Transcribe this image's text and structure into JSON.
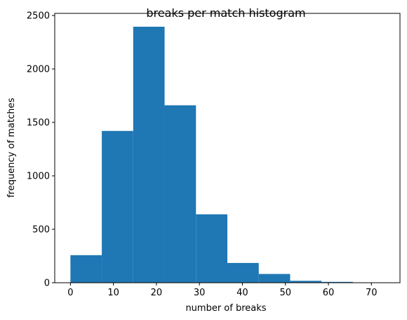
{
  "chart_data": {
    "type": "bar",
    "title": "breaks per match histogram",
    "xlabel": "number of breaks",
    "ylabel": "frequency of matches",
    "xlim": [
      -3.65,
      76.65
    ],
    "ylim": [
      0,
      2520
    ],
    "xticks": [
      0,
      10,
      20,
      30,
      40,
      50,
      60,
      70
    ],
    "yticks": [
      0,
      500,
      1000,
      1500,
      2000,
      2500
    ],
    "bin_edges": [
      0,
      7.3,
      14.6,
      21.9,
      29.2,
      36.5,
      43.8,
      51.1,
      58.4,
      65.7,
      73
    ],
    "values": [
      258,
      1420,
      2395,
      1660,
      640,
      185,
      82,
      18,
      8,
      2
    ],
    "bar_color": "#1f77b4",
    "grid": false,
    "legend": "none"
  }
}
